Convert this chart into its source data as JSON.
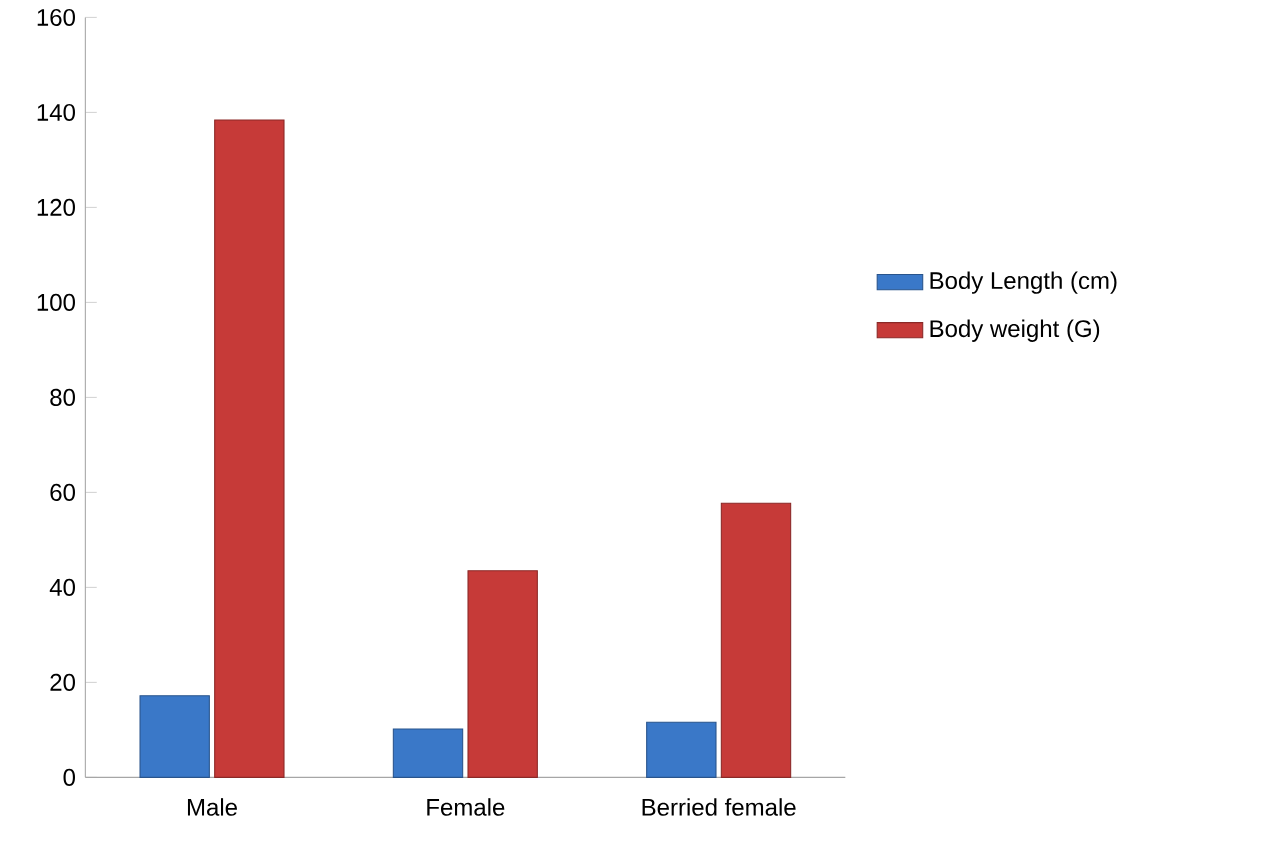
{
  "chart_data": {
    "type": "bar",
    "categories": [
      "Male",
      "Female",
      "Berried female"
    ],
    "series": [
      {
        "name": "Body Length (cm)",
        "color": "#3a78c8",
        "values": [
          17.2,
          10.2,
          11.6
        ]
      },
      {
        "name": "Body weight (G)",
        "color": "#c63a38",
        "values": [
          138.4,
          43.5,
          57.7
        ]
      }
    ],
    "ylim": [
      0,
      160
    ],
    "yticks": [
      0,
      20,
      40,
      60,
      80,
      100,
      120,
      140,
      160
    ],
    "legend": "right",
    "grid": false
  }
}
